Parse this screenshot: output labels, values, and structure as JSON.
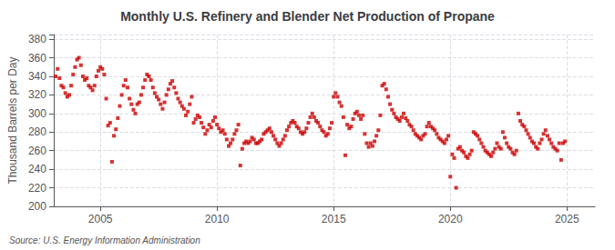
{
  "chart_data": {
    "type": "scatter",
    "title": "Monthly U.S. Refinery and Blender Net Production of Propane",
    "ylabel": "Thousand Barrels per Day",
    "source": "Source: U.S. Energy Information Administration",
    "xlim": [
      2003.0,
      2026.2
    ],
    "xticks": [
      2005,
      2010,
      2015,
      2020,
      2025
    ],
    "ylim": [
      200,
      385
    ],
    "yticks": [
      200,
      220,
      240,
      260,
      280,
      300,
      320,
      340,
      360,
      380
    ],
    "grid": true,
    "color": "#cc0000",
    "marker": "square",
    "x": [
      2003.083,
      2003.167,
      2003.25,
      2003.333,
      2003.417,
      2003.5,
      2003.583,
      2003.667,
      2003.75,
      2003.833,
      2003.917,
      2004.0,
      2004.083,
      2004.167,
      2004.25,
      2004.333,
      2004.417,
      2004.5,
      2004.583,
      2004.667,
      2004.75,
      2004.833,
      2004.917,
      2005.0,
      2005.083,
      2005.167,
      2005.25,
      2005.333,
      2005.417,
      2005.5,
      2005.583,
      2005.667,
      2005.75,
      2005.833,
      2005.917,
      2006.0,
      2006.083,
      2006.167,
      2006.25,
      2006.333,
      2006.417,
      2006.5,
      2006.583,
      2006.667,
      2006.75,
      2006.833,
      2006.917,
      2007.0,
      2007.083,
      2007.167,
      2007.25,
      2007.333,
      2007.417,
      2007.5,
      2007.583,
      2007.667,
      2007.75,
      2007.833,
      2007.917,
      2008.0,
      2008.083,
      2008.167,
      2008.25,
      2008.333,
      2008.417,
      2008.5,
      2008.583,
      2008.667,
      2008.75,
      2008.833,
      2008.917,
      2009.0,
      2009.083,
      2009.167,
      2009.25,
      2009.333,
      2009.417,
      2009.5,
      2009.583,
      2009.667,
      2009.75,
      2009.833,
      2009.917,
      2010.0,
      2010.083,
      2010.167,
      2010.25,
      2010.333,
      2010.417,
      2010.5,
      2010.583,
      2010.667,
      2010.75,
      2010.833,
      2010.917,
      2011.0,
      2011.083,
      2011.167,
      2011.25,
      2011.333,
      2011.417,
      2011.5,
      2011.583,
      2011.667,
      2011.75,
      2011.833,
      2011.917,
      2012.0,
      2012.083,
      2012.167,
      2012.25,
      2012.333,
      2012.417,
      2012.5,
      2012.583,
      2012.667,
      2012.75,
      2012.833,
      2012.917,
      2013.0,
      2013.083,
      2013.167,
      2013.25,
      2013.333,
      2013.417,
      2013.5,
      2013.583,
      2013.667,
      2013.75,
      2013.833,
      2013.917,
      2014.0,
      2014.083,
      2014.167,
      2014.25,
      2014.333,
      2014.417,
      2014.5,
      2014.583,
      2014.667,
      2014.75,
      2014.833,
      2014.917,
      2015.0,
      2015.083,
      2015.167,
      2015.25,
      2015.333,
      2015.417,
      2015.5,
      2015.583,
      2015.667,
      2015.75,
      2015.833,
      2015.917,
      2016.0,
      2016.083,
      2016.167,
      2016.25,
      2016.333,
      2016.417,
      2016.5,
      2016.583,
      2016.667,
      2016.75,
      2016.833,
      2016.917,
      2017.0,
      2017.083,
      2017.167,
      2017.25,
      2017.333,
      2017.417,
      2017.5,
      2017.583,
      2017.667,
      2017.75,
      2017.833,
      2017.917,
      2018.0,
      2018.083,
      2018.167,
      2018.25,
      2018.333,
      2018.417,
      2018.5,
      2018.583,
      2018.667,
      2018.75,
      2018.833,
      2018.917,
      2019.0,
      2019.083,
      2019.167,
      2019.25,
      2019.333,
      2019.417,
      2019.5,
      2019.583,
      2019.667,
      2019.75,
      2019.833,
      2019.917,
      2020.0,
      2020.083,
      2020.167,
      2020.25,
      2020.333,
      2020.417,
      2020.5,
      2020.583,
      2020.667,
      2020.75,
      2020.833,
      2020.917,
      2021.0,
      2021.083,
      2021.167,
      2021.25,
      2021.333,
      2021.417,
      2021.5,
      2021.583,
      2021.667,
      2021.75,
      2021.833,
      2021.917,
      2022.0,
      2022.083,
      2022.167,
      2022.25,
      2022.333,
      2022.417,
      2022.5,
      2022.583,
      2022.667,
      2022.75,
      2022.833,
      2022.917,
      2023.0,
      2023.083,
      2023.167,
      2023.25,
      2023.333,
      2023.417,
      2023.5,
      2023.583,
      2023.667,
      2023.75,
      2023.833,
      2023.917,
      2024.0,
      2024.083,
      2024.167,
      2024.25,
      2024.333,
      2024.417,
      2024.5,
      2024.583,
      2024.667,
      2024.75,
      2024.833,
      2024.917
    ],
    "values": [
      340,
      348,
      338,
      330,
      328,
      322,
      318,
      320,
      330,
      342,
      350,
      358,
      360,
      352,
      340,
      336,
      338,
      330,
      328,
      325,
      330,
      340,
      346,
      350,
      348,
      342,
      316,
      287,
      290,
      248,
      276,
      283,
      295,
      308,
      320,
      330,
      336,
      328,
      316,
      310,
      304,
      300,
      310,
      312,
      320,
      328,
      336,
      342,
      340,
      336,
      328,
      322,
      318,
      315,
      310,
      305,
      312,
      320,
      326,
      332,
      335,
      328,
      322,
      316,
      312,
      308,
      305,
      298,
      302,
      310,
      318,
      290,
      294,
      298,
      296,
      290,
      285,
      278,
      282,
      288,
      285,
      292,
      296,
      288,
      284,
      280,
      282,
      278,
      272,
      265,
      268,
      272,
      278,
      282,
      288,
      244,
      262,
      268,
      270,
      268,
      270,
      274,
      272,
      268,
      268,
      270,
      272,
      278,
      280,
      282,
      284,
      280,
      276,
      272,
      268,
      265,
      268,
      272,
      276,
      282,
      286,
      290,
      292,
      290,
      286,
      284,
      280,
      278,
      280,
      284,
      290,
      296,
      300,
      296,
      292,
      290,
      286,
      282,
      280,
      276,
      278,
      284,
      290,
      318,
      322,
      318,
      312,
      308,
      296,
      255,
      288,
      284,
      286,
      294,
      300,
      302,
      298,
      294,
      298,
      278,
      268,
      264,
      268,
      265,
      270,
      276,
      282,
      298,
      330,
      332,
      326,
      318,
      310,
      304,
      300,
      296,
      294,
      292,
      296,
      300,
      295,
      292,
      288,
      286,
      282,
      278,
      276,
      274,
      272,
      276,
      278,
      286,
      290,
      286,
      284,
      282,
      278,
      274,
      272,
      270,
      268,
      272,
      276,
      232,
      256,
      252,
      220,
      262,
      264,
      260,
      258,
      254,
      252,
      256,
      260,
      280,
      278,
      276,
      272,
      268,
      264,
      260,
      258,
      256,
      254,
      258,
      262,
      268,
      264,
      262,
      280,
      274,
      268,
      264,
      262,
      258,
      256,
      260,
      300,
      292,
      288,
      286,
      282,
      278,
      274,
      270,
      268,
      264,
      262,
      268,
      272,
      278,
      282,
      276,
      272,
      268,
      264,
      262,
      260,
      268,
      250,
      268,
      270
    ]
  }
}
